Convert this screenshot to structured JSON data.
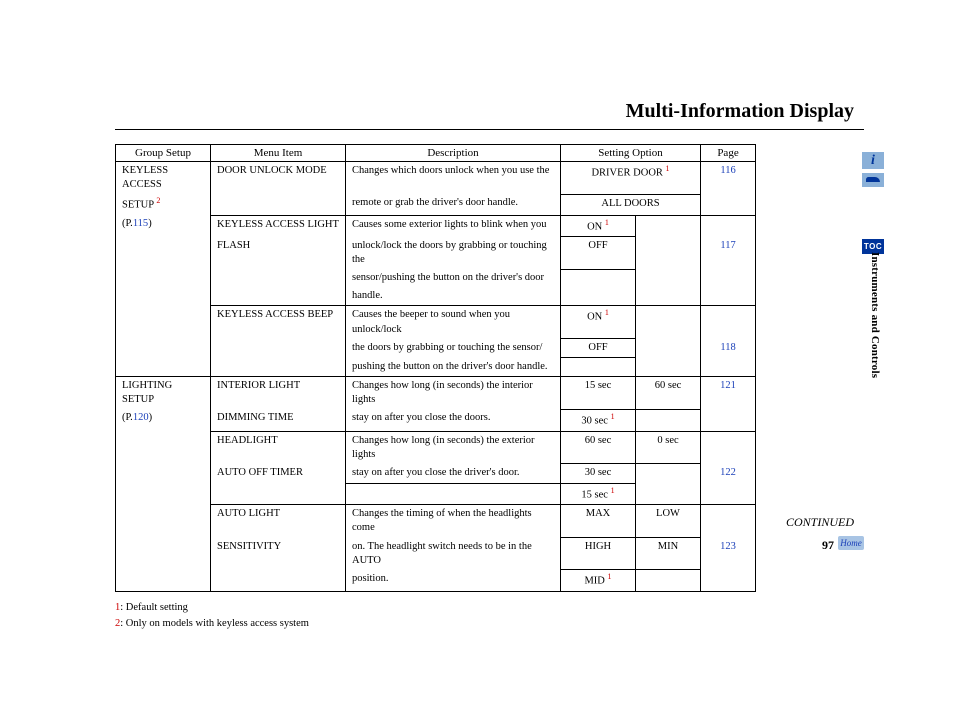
{
  "title": "Multi-Information Display",
  "headers": {
    "group": "Group Setup",
    "menu": "Menu Item",
    "desc": "Description",
    "opt": "Setting Option",
    "page": "Page"
  },
  "groups": {
    "keyless": {
      "l1": "KEYLESS ACCESS",
      "l2": "SETUP",
      "sup": "2",
      "pref": "(P.",
      "pnum": "115",
      "psuf": ")"
    },
    "lighting": {
      "l1": "LIGHTING SETUP",
      "pref": "(P.",
      "pnum": "120",
      "psuf": ")"
    }
  },
  "rows": {
    "r1": {
      "menu": "DOOR UNLOCK MODE",
      "desc1": "Changes which doors unlock when you use the",
      "desc2": "remote or grab the driver's door handle.",
      "opt1": "DRIVER DOOR",
      "opt1_sup": "1",
      "opt2a": "ALL DOORS",
      "page": "116"
    },
    "r2": {
      "menu1": "KEYLESS ACCESS LIGHT",
      "menu2": "FLASH",
      "desc1": "Causes some exterior lights to blink when you",
      "desc2": "unlock/lock the doors by grabbing or touching the",
      "desc3": "sensor/pushing the button on the driver's door",
      "desc4": "handle.",
      "opt1": "ON",
      "opt1_sup": "1",
      "opt2": "OFF",
      "page": "117"
    },
    "r3": {
      "menu": "KEYLESS ACCESS BEEP",
      "desc1": "Causes the beeper to sound when you unlock/lock",
      "desc2": "the doors by grabbing or touching the sensor/",
      "desc3": "pushing the button on the driver's door handle.",
      "opt1": "ON",
      "opt1_sup": "1",
      "opt2": "OFF",
      "page": "118"
    },
    "r4": {
      "menu1": "INTERIOR LIGHT",
      "menu2": "DIMMING TIME",
      "desc1": "Changes how long (in seconds) the interior lights",
      "desc2": "stay on after you close the doors.",
      "opt1": "15 sec",
      "opt2": "60 sec",
      "opt3": "30 sec",
      "opt3_sup": "1",
      "page": "121"
    },
    "r5": {
      "menu1": "HEADLIGHT",
      "menu2": "AUTO OFF TIMER",
      "desc1": "Changes how long (in seconds) the exterior lights",
      "desc2": "stay on after you close the driver's door.",
      "opt1": "60 sec",
      "opt2": "0 sec",
      "opt3": "30 sec",
      "opt4": "15 sec",
      "opt4_sup": "1",
      "page": "122"
    },
    "r6": {
      "menu1": "AUTO LIGHT",
      "menu2": "SENSITIVITY",
      "desc1": "Changes the timing of when the headlights come",
      "desc2": "on. The headlight switch needs to be in the AUTO",
      "desc3": "position.",
      "opt1": "MAX",
      "opt2": "LOW",
      "opt3": "HIGH",
      "opt4": "MIN",
      "opt5": "MID",
      "opt5_sup": "1",
      "page": "123"
    }
  },
  "footnotes": {
    "f1n": "1",
    "f1t": ": Default setting",
    "f2n": "2",
    "f2t": ": Only on models with keyless access system"
  },
  "continued": "CONTINUED",
  "page_number": "97",
  "side_label": "Instruments and Controls",
  "icons": {
    "i": "i",
    "toc": "TOC",
    "home": "Home"
  }
}
